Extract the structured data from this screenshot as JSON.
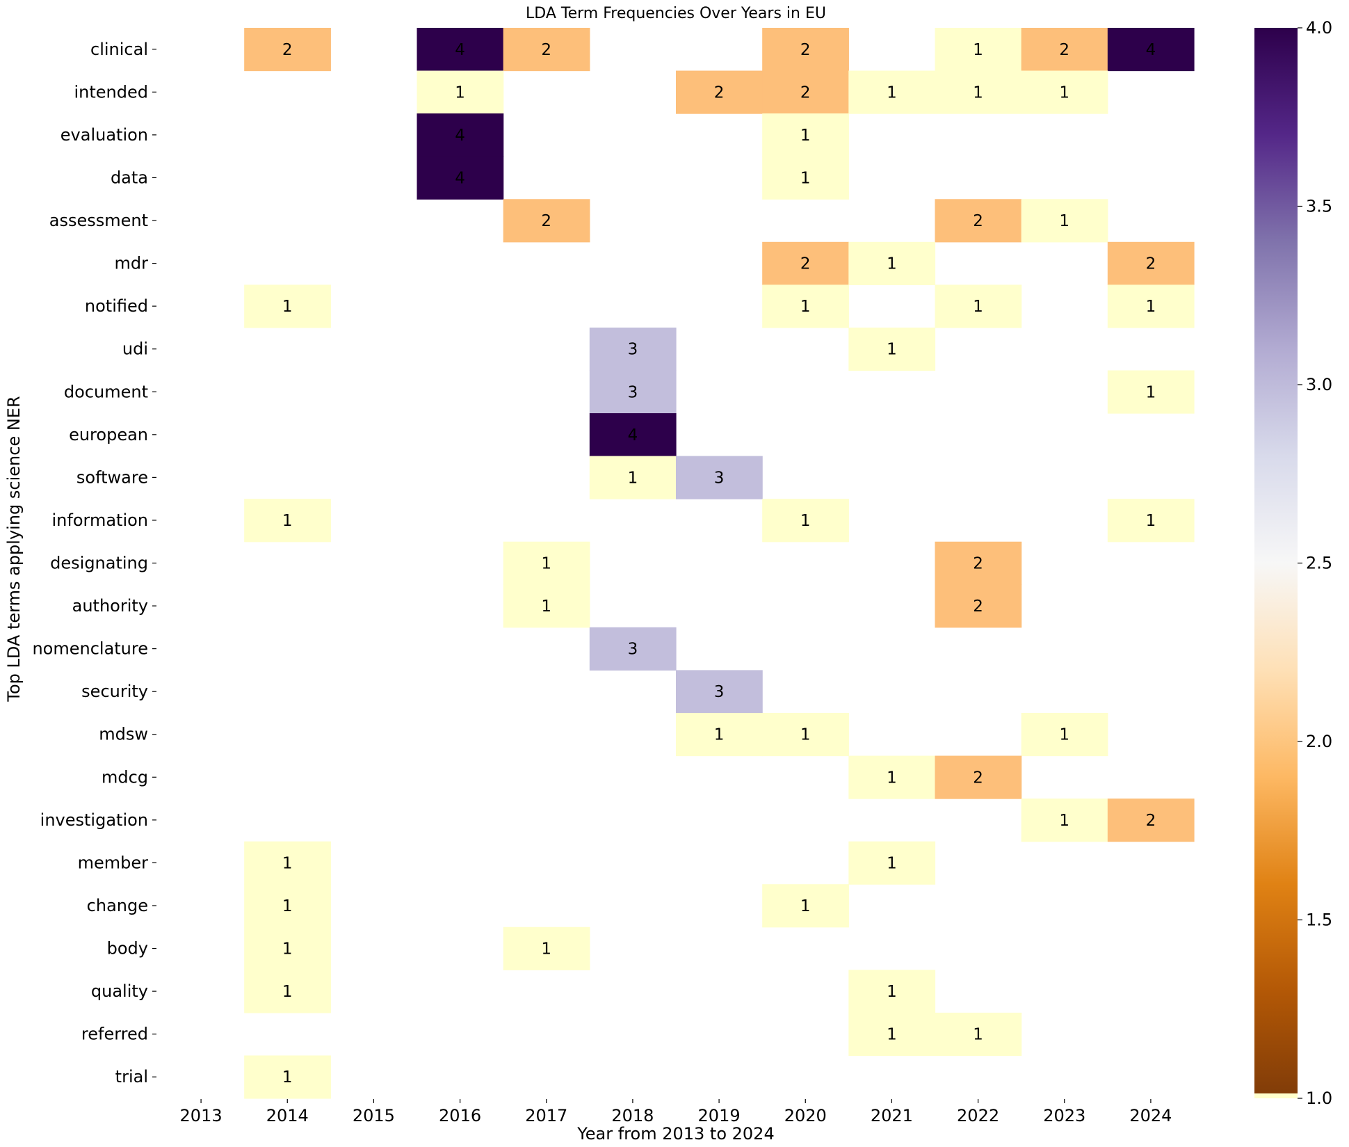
{
  "chart_data": {
    "type": "heatmap",
    "title": "LDA Term Frequencies Over Years in EU",
    "xlabel": "Year from 2013 to 2024",
    "ylabel": "Top LDA terms applying science NER",
    "x": [
      "2013",
      "2014",
      "2015",
      "2016",
      "2017",
      "2018",
      "2019",
      "2020",
      "2021",
      "2022",
      "2023",
      "2024"
    ],
    "y": [
      "clinical",
      "intended",
      "evaluation",
      "data",
      "assessment",
      "mdr",
      "notified",
      "udi",
      "document",
      "european",
      "software",
      "information",
      "designating",
      "authority",
      "nomenclature",
      "security",
      "mdsw",
      "mdcg",
      "investigation",
      "member",
      "change",
      "body",
      "quality",
      "referred",
      "trial"
    ],
    "values": [
      [
        null,
        2,
        null,
        4,
        2,
        null,
        null,
        2,
        null,
        1,
        2,
        4
      ],
      [
        null,
        null,
        null,
        1,
        null,
        null,
        2,
        2,
        1,
        1,
        1,
        null
      ],
      [
        null,
        null,
        null,
        4,
        null,
        null,
        null,
        1,
        null,
        null,
        null,
        null
      ],
      [
        null,
        null,
        null,
        4,
        null,
        null,
        null,
        1,
        null,
        null,
        null,
        null
      ],
      [
        null,
        null,
        null,
        null,
        2,
        null,
        null,
        null,
        null,
        2,
        1,
        null
      ],
      [
        null,
        null,
        null,
        null,
        null,
        null,
        null,
        2,
        1,
        null,
        null,
        2
      ],
      [
        null,
        1,
        null,
        null,
        null,
        null,
        null,
        1,
        null,
        1,
        null,
        1
      ],
      [
        null,
        null,
        null,
        null,
        null,
        3,
        null,
        null,
        1,
        null,
        null,
        null
      ],
      [
        null,
        null,
        null,
        null,
        null,
        3,
        null,
        null,
        null,
        null,
        null,
        1
      ],
      [
        null,
        null,
        null,
        null,
        null,
        4,
        null,
        null,
        null,
        null,
        null,
        null
      ],
      [
        null,
        null,
        null,
        null,
        null,
        1,
        3,
        null,
        null,
        null,
        null,
        null
      ],
      [
        null,
        1,
        null,
        null,
        null,
        null,
        null,
        1,
        null,
        null,
        null,
        1
      ],
      [
        null,
        null,
        null,
        null,
        1,
        null,
        null,
        null,
        null,
        2,
        null,
        null
      ],
      [
        null,
        null,
        null,
        null,
        1,
        null,
        null,
        null,
        null,
        2,
        null,
        null
      ],
      [
        null,
        null,
        null,
        null,
        null,
        3,
        null,
        null,
        null,
        null,
        null,
        null
      ],
      [
        null,
        null,
        null,
        null,
        null,
        null,
        3,
        null,
        null,
        null,
        null,
        null
      ],
      [
        null,
        null,
        null,
        null,
        null,
        null,
        1,
        1,
        null,
        null,
        1,
        null
      ],
      [
        null,
        null,
        null,
        null,
        null,
        null,
        null,
        null,
        1,
        2,
        null,
        null
      ],
      [
        null,
        null,
        null,
        null,
        null,
        null,
        null,
        null,
        null,
        null,
        1,
        2
      ],
      [
        null,
        1,
        null,
        null,
        null,
        null,
        null,
        null,
        1,
        null,
        null,
        null
      ],
      [
        null,
        1,
        null,
        null,
        null,
        null,
        null,
        1,
        null,
        null,
        null,
        null
      ],
      [
        null,
        1,
        null,
        null,
        1,
        null,
        null,
        null,
        null,
        null,
        null,
        null
      ],
      [
        null,
        1,
        null,
        null,
        null,
        null,
        null,
        null,
        1,
        null,
        null,
        null
      ],
      [
        null,
        null,
        null,
        null,
        null,
        null,
        null,
        null,
        1,
        1,
        null,
        null
      ],
      [
        null,
        1,
        null,
        null,
        null,
        null,
        null,
        null,
        null,
        null,
        null,
        null
      ]
    ],
    "colorbar": {
      "range": [
        1.0,
        4.0
      ],
      "ticks": [
        "1.0",
        "1.5",
        "2.0",
        "2.5",
        "3.0",
        "3.5",
        "4.0"
      ],
      "colormap": "PuOr_r",
      "colors": {
        "v1": "#ffffcc",
        "v2": "#fdbf7a",
        "v3": "#c2bedc",
        "v4": "#2d004b"
      }
    }
  }
}
